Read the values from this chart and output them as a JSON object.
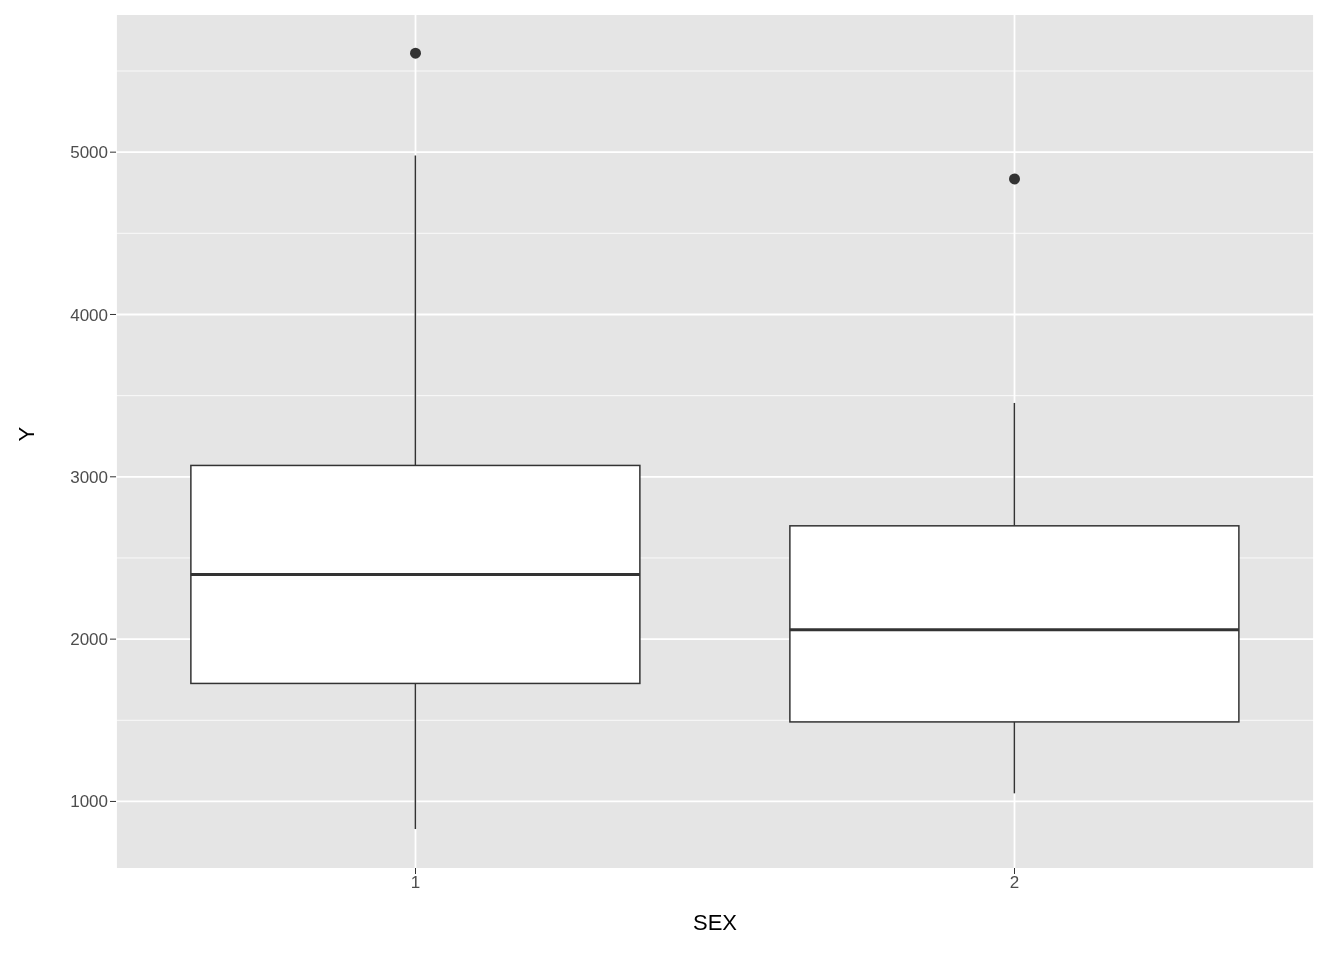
{
  "chart_data": {
    "type": "box",
    "xlabel": "SEX",
    "ylabel": "Y",
    "categories": [
      "1",
      "2"
    ],
    "boxes": [
      {
        "low": 830,
        "q1": 1727,
        "median": 2398,
        "q3": 3070,
        "high": 4980,
        "outliers": [
          5610
        ]
      },
      {
        "low": 1050,
        "q1": 1490,
        "median": 2057,
        "q3": 2698,
        "high": 3455,
        "outliers": [
          4835
        ]
      }
    ],
    "ylim": [
      590,
      5845
    ],
    "yticks": [
      1000,
      2000,
      3000,
      4000,
      5000
    ],
    "grid": true
  }
}
